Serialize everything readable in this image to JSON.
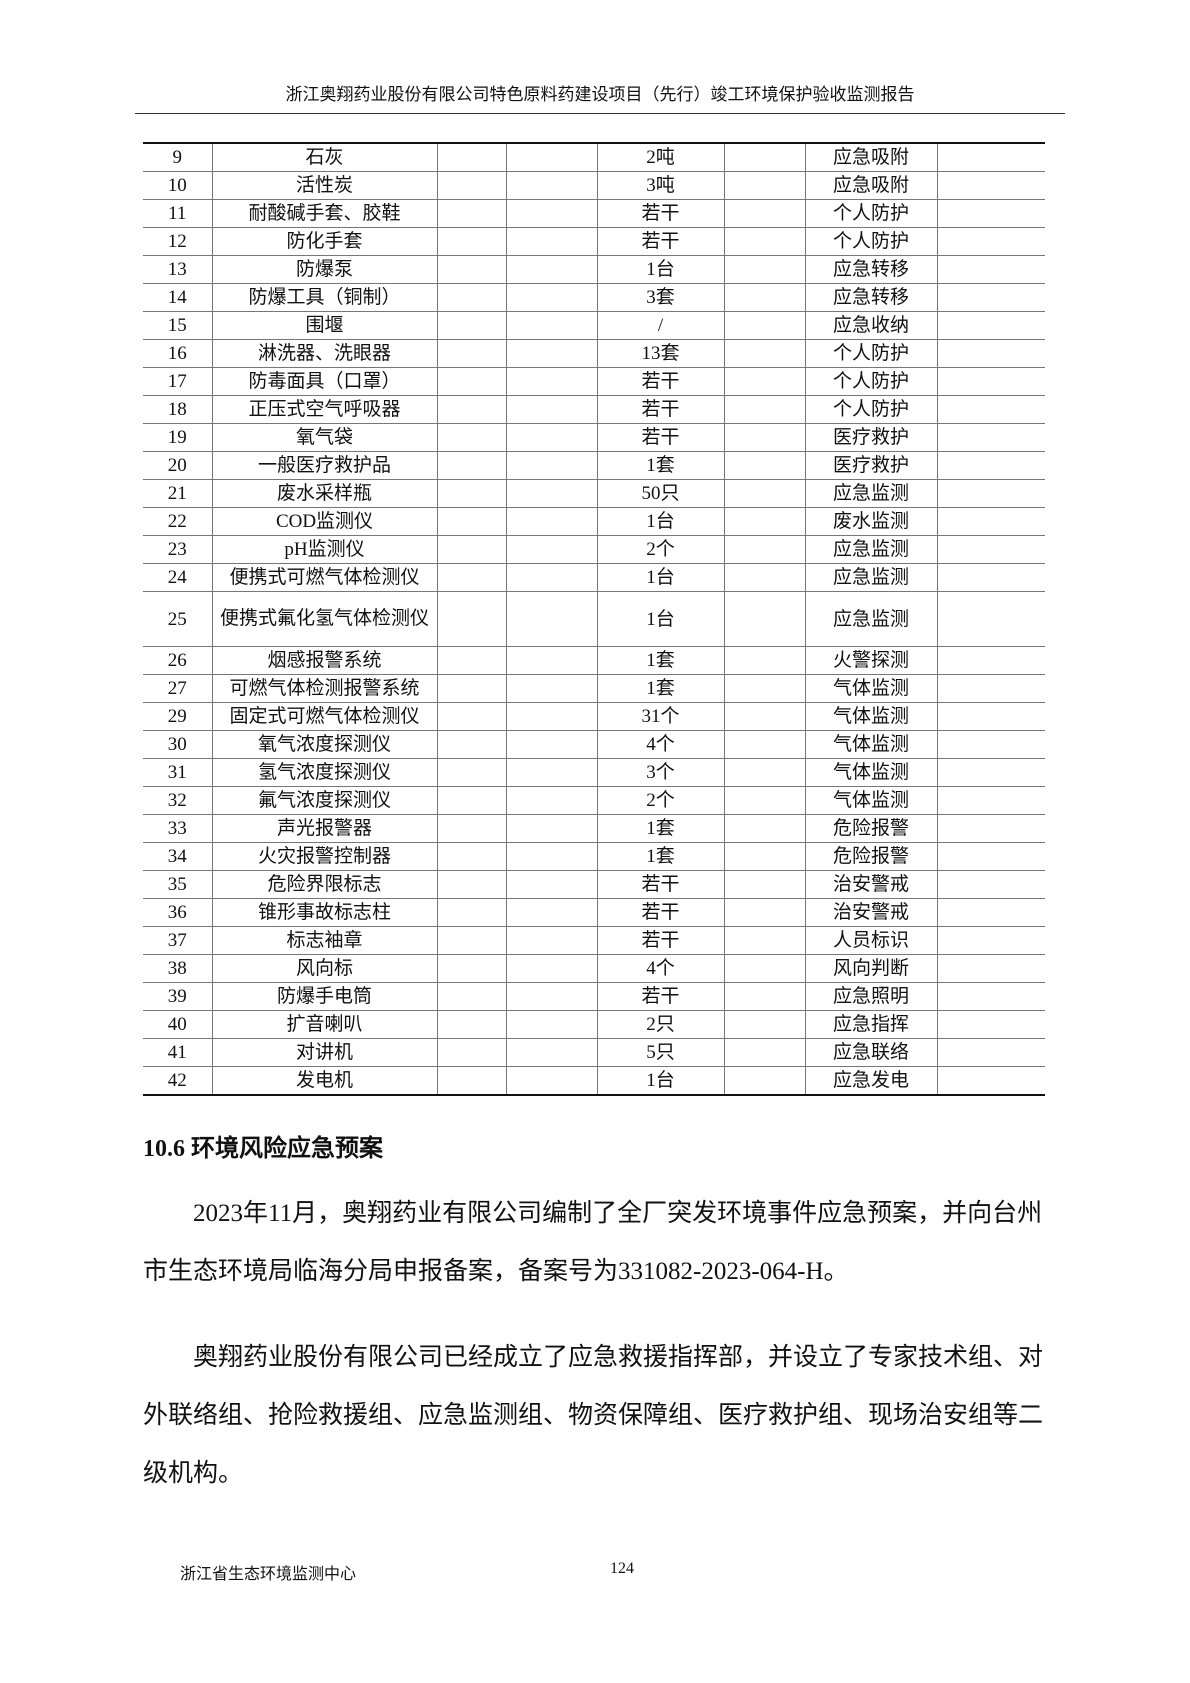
{
  "header": "浙江奥翔药业股份有限公司特色原料药建设项目（先行）竣工环境保护验收监测报告",
  "rows": [
    [
      "9",
      "石灰",
      "2吨",
      "应急吸附"
    ],
    [
      "10",
      "活性炭",
      "3吨",
      "应急吸附"
    ],
    [
      "11",
      "耐酸碱手套、胶鞋",
      "若干",
      "个人防护"
    ],
    [
      "12",
      "防化手套",
      "若干",
      "个人防护"
    ],
    [
      "13",
      "防爆泵",
      "1台",
      "应急转移"
    ],
    [
      "14",
      "防爆工具（铜制）",
      "3套",
      "应急转移"
    ],
    [
      "15",
      "围堰",
      "/",
      "应急收纳"
    ],
    [
      "16",
      "淋洗器、洗眼器",
      "13套",
      "个人防护"
    ],
    [
      "17",
      "防毒面具（口罩）",
      "若干",
      "个人防护"
    ],
    [
      "18",
      "正压式空气呼吸器",
      "若干",
      "个人防护"
    ],
    [
      "19",
      "氧气袋",
      "若干",
      "医疗救护"
    ],
    [
      "20",
      "一般医疗救护品",
      "1套",
      "医疗救护"
    ],
    [
      "21",
      "废水采样瓶",
      "50只",
      "应急监测"
    ],
    [
      "22",
      "COD监测仪",
      "1台",
      "废水监测"
    ],
    [
      "23",
      "pH监测仪",
      "2个",
      "应急监测"
    ],
    [
      "24",
      "便携式可燃气体检测仪",
      "1台",
      "应急监测"
    ],
    [
      "25",
      "便携式氟化氢气体检测仪",
      "1台",
      "应急监测"
    ],
    [
      "26",
      "烟感报警系统",
      "1套",
      "火警探测"
    ],
    [
      "27",
      "可燃气体检测报警系统",
      "1套",
      "气体监测"
    ],
    [
      "29",
      "固定式可燃气体检测仪",
      "31个",
      "气体监测"
    ],
    [
      "30",
      "氧气浓度探测仪",
      "4个",
      "气体监测"
    ],
    [
      "31",
      "氢气浓度探测仪",
      "3个",
      "气体监测"
    ],
    [
      "32",
      "氟气浓度探测仪",
      "2个",
      "气体监测"
    ],
    [
      "33",
      "声光报警器",
      "1套",
      "危险报警"
    ],
    [
      "34",
      "火灾报警控制器",
      "1套",
      "危险报警"
    ],
    [
      "35",
      "危险界限标志",
      "若干",
      "治安警戒"
    ],
    [
      "36",
      "锥形事故标志柱",
      "若干",
      "治安警戒"
    ],
    [
      "37",
      "标志袖章",
      "若干",
      "人员标识"
    ],
    [
      "38",
      "风向标",
      "4个",
      "风向判断"
    ],
    [
      "39",
      "防爆手电筒",
      "若干",
      "应急照明"
    ],
    [
      "40",
      "扩音喇叭",
      "2只",
      "应急指挥"
    ],
    [
      "41",
      "对讲机",
      "5只",
      "应急联络"
    ],
    [
      "42",
      "发电机",
      "1台",
      "应急发电"
    ]
  ],
  "section_title": "10.6 环境风险应急预案",
  "paragraphs": [
    "2023年11月，奥翔药业有限公司编制了全厂突发环境事件应急预案，并向台州市生态环境局临海分局申报备案，备案号为331082-2023-064-H。",
    "奥翔药业股份有限公司已经成立了应急救援指挥部，并设立了专家技术组、对外联络组、抢险救援组、应急监测组、物资保障组、医疗救护组、现场治安组等二级机构。"
  ],
  "footer": {
    "org": "浙江省生态环境监测中心",
    "page": "124"
  }
}
